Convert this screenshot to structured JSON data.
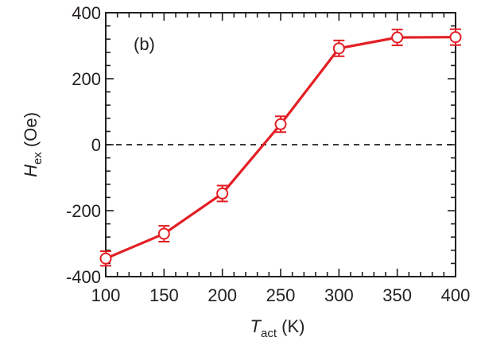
{
  "chart_data": {
    "type": "line",
    "panel_label": "(b)",
    "x": [
      100,
      150,
      200,
      250,
      300,
      350,
      400
    ],
    "series": [
      {
        "values": [
          -345,
          -270,
          -148,
          62,
          292,
          325,
          326
        ],
        "errors": [
          22,
          24,
          24,
          24,
          24,
          24,
          24
        ]
      }
    ],
    "xlim": [
      100,
      400
    ],
    "ylim": [
      -400,
      400
    ],
    "xticks": [
      100,
      150,
      200,
      250,
      300,
      350,
      400
    ],
    "yticks": [
      -400,
      -200,
      0,
      200,
      400
    ],
    "xlabel": {
      "main": "T",
      "sub": "act",
      "unit": " (K)"
    },
    "ylabel": {
      "main": "H",
      "sub": "ex",
      "unit": " (Oe)"
    },
    "reference_line": {
      "y": 0,
      "style": "dashed"
    },
    "grid": false,
    "colors": {
      "series": "#e31e24",
      "axes": "#231f20",
      "marker_fill": "#ffffff"
    }
  }
}
